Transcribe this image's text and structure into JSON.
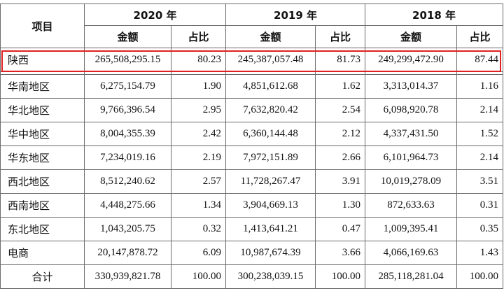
{
  "header": {
    "item_label": "项目",
    "years": [
      "2020 年",
      "2019 年",
      "2018 年"
    ],
    "amount_label": "金额",
    "ratio_label": "占比"
  },
  "highlight_color": "#e02020",
  "rows": [
    {
      "region": "陕西",
      "v2020": "265,508,295.15",
      "p2020": "80.23",
      "v2019": "245,387,057.48",
      "p2019": "81.73",
      "v2018": "249,299,472.90",
      "p2018": "87.44"
    },
    {
      "region": "华南地区",
      "v2020": "6,275,154.79",
      "p2020": "1.90",
      "v2019": "4,851,612.68",
      "p2019": "1.62",
      "v2018": "3,313,014.37",
      "p2018": "1.16"
    },
    {
      "region": "华北地区",
      "v2020": "9,766,396.54",
      "p2020": "2.95",
      "v2019": "7,632,820.42",
      "p2019": "2.54",
      "v2018": "6,098,920.78",
      "p2018": "2.14"
    },
    {
      "region": "华中地区",
      "v2020": "8,004,355.39",
      "p2020": "2.42",
      "v2019": "6,360,144.48",
      "p2019": "2.12",
      "v2018": "4,337,431.50",
      "p2018": "1.52"
    },
    {
      "region": "华东地区",
      "v2020": "7,234,019.16",
      "p2020": "2.19",
      "v2019": "7,972,151.89",
      "p2019": "2.66",
      "v2018": "6,101,964.73",
      "p2018": "2.14"
    },
    {
      "region": "西北地区",
      "v2020": "8,512,240.62",
      "p2020": "2.57",
      "v2019": "11,728,267.47",
      "p2019": "3.91",
      "v2018": "10,019,278.09",
      "p2018": "3.51"
    },
    {
      "region": "西南地区",
      "v2020": "4,448,275.66",
      "p2020": "1.34",
      "v2019": "3,904,669.13",
      "p2019": "1.30",
      "v2018": "872,633.63",
      "p2018": "0.31"
    },
    {
      "region": "东北地区",
      "v2020": "1,043,205.75",
      "p2020": "0.32",
      "v2019": "1,413,641.21",
      "p2019": "0.47",
      "v2018": "1,009,395.41",
      "p2018": "0.35"
    },
    {
      "region": "电商",
      "v2020": "20,147,878.72",
      "p2020": "6.09",
      "v2019": "10,987,674.39",
      "p2019": "3.66",
      "v2018": "4,066,169.63",
      "p2018": "1.43"
    },
    {
      "region": "合计",
      "v2020": "330,939,821.78",
      "p2020": "100.00",
      "v2019": "300,238,039.15",
      "p2019": "100.00",
      "v2018": "285,118,281.04",
      "p2018": "100.00"
    }
  ]
}
